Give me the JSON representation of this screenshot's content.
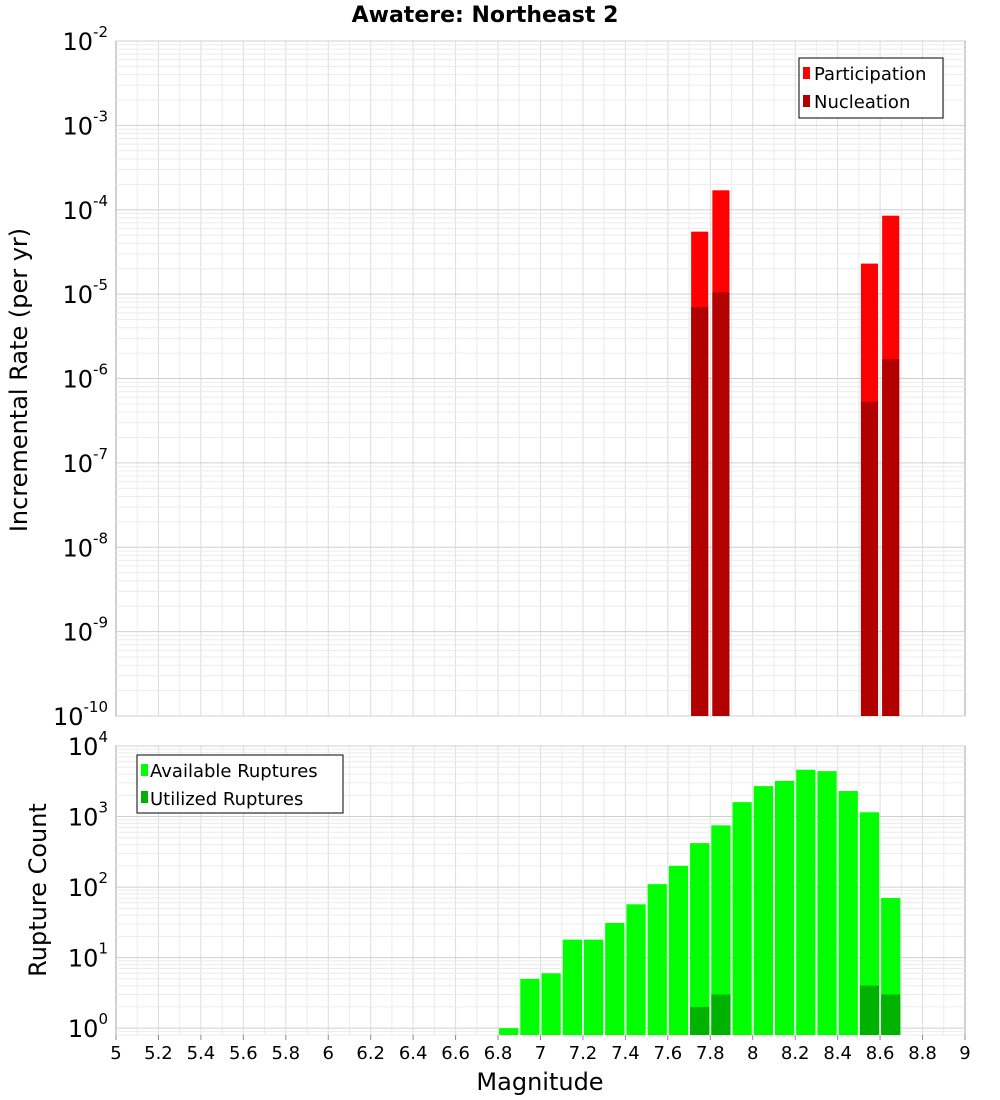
{
  "chart_data": [
    {
      "type": "bar",
      "title": "Awatere: Northeast 2",
      "ylabel": "Incremental Rate (per yr)",
      "xlabel": "",
      "yscale": "log",
      "ylim": [
        1e-10,
        0.01
      ],
      "xlim": [
        5,
        9
      ],
      "bin_width": 0.1,
      "grid": true,
      "legend_position": "top-right",
      "ytick_labels": [
        {
          "base": "10",
          "exp": "-10"
        },
        {
          "base": "10",
          "exp": "-9"
        },
        {
          "base": "10",
          "exp": "-8"
        },
        {
          "base": "10",
          "exp": "-7"
        },
        {
          "base": "10",
          "exp": "-6"
        },
        {
          "base": "10",
          "exp": "-5"
        },
        {
          "base": "10",
          "exp": "-4"
        },
        {
          "base": "10",
          "exp": "-3"
        },
        {
          "base": "10",
          "exp": "-2"
        }
      ],
      "series": [
        {
          "name": "Participation",
          "color": "#ff0000",
          "x": [
            7.75,
            7.85,
            8.55,
            8.65
          ],
          "values": [
            5.5e-05,
            0.00017,
            2.3e-05,
            8.5e-05
          ]
        },
        {
          "name": "Nucleation",
          "color": "#b20000",
          "x": [
            7.75,
            7.85,
            8.55,
            8.65
          ],
          "values": [
            7e-06,
            1.05e-05,
            5.3e-07,
            1.7e-06
          ]
        }
      ]
    },
    {
      "type": "bar",
      "title": "",
      "ylabel": "Rupture Count",
      "xlabel": "Magnitude",
      "yscale": "log",
      "ylim": [
        0.8,
        10000
      ],
      "xlim": [
        5,
        9
      ],
      "bin_width": 0.1,
      "grid": true,
      "legend_position": "top-left",
      "ytick_labels": [
        {
          "base": "10",
          "exp": "0"
        },
        {
          "base": "10",
          "exp": "1"
        },
        {
          "base": "10",
          "exp": "2"
        },
        {
          "base": "10",
          "exp": "3"
        },
        {
          "base": "10",
          "exp": "4"
        }
      ],
      "xtick_labels": [
        "5",
        "5.2",
        "5.4",
        "5.6",
        "5.8",
        "6",
        "6.2",
        "6.4",
        "6.6",
        "6.8",
        "7",
        "7.2",
        "7.4",
        "7.6",
        "7.8",
        "8",
        "8.2",
        "8.4",
        "8.6",
        "8.8",
        "9"
      ],
      "series": [
        {
          "name": "Available Ruptures",
          "color": "#00ff00",
          "x": [
            6.85,
            6.95,
            7.05,
            7.15,
            7.25,
            7.35,
            7.45,
            7.55,
            7.65,
            7.75,
            7.85,
            7.95,
            8.05,
            8.15,
            8.25,
            8.35,
            8.45,
            8.55,
            8.65
          ],
          "values": [
            1,
            5,
            6,
            18,
            18,
            31,
            57,
            110,
            200,
            420,
            750,
            1600,
            2700,
            3200,
            4600,
            4400,
            2300,
            1150,
            70
          ]
        },
        {
          "name": "Utilized Ruptures",
          "color": "#00b200",
          "x": [
            7.75,
            7.85,
            8.55,
            8.65
          ],
          "values": [
            2,
            3,
            4,
            3
          ]
        }
      ]
    }
  ]
}
